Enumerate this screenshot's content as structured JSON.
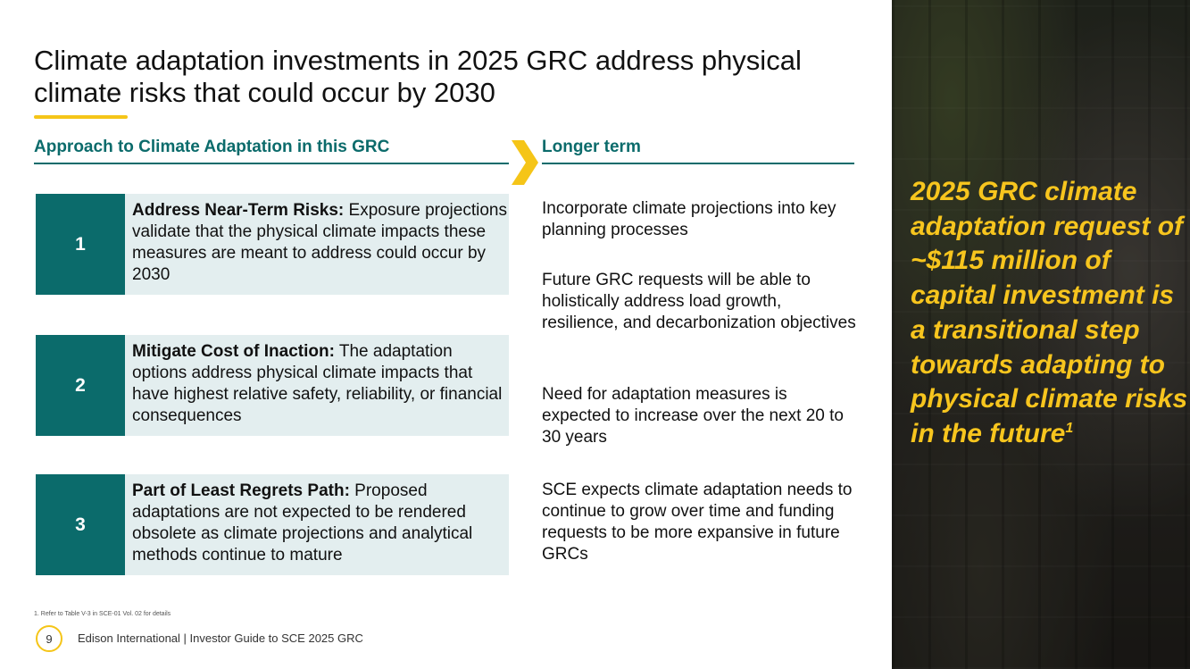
{
  "title": "Climate adaptation investments in 2025 GRC address physical climate risks that could occur by 2030",
  "approach_heading": "Approach to Climate Adaptation in this GRC",
  "longer_term_heading": "Longer term",
  "cards": [
    {
      "number": "1",
      "heading": "Address Near-Term Risks:",
      "body": " Exposure projections validate that the physical climate impacts these measures are meant to address could occur by 2030"
    },
    {
      "number": "2",
      "heading": "Mitigate Cost of Inaction:",
      "body": " The adaptation options address physical climate impacts that have highest relative safety, reliability, or financial consequences"
    },
    {
      "number": "3",
      "heading": "Part of Least Regrets Path:",
      "body": " Proposed adaptations are not expected to be rendered obsolete as climate projections and analytical methods continue to mature"
    }
  ],
  "longer_term_items": [
    "Incorporate climate projections into key planning processes",
    "Future GRC requests will be able to holistically address load growth, resilience, and decarbonization objectives",
    "Need for adaptation measures is expected to increase over the next 20 to 30 years",
    "SCE expects climate adaptation needs to continue to grow over time and funding requests to be more expansive in future GRCs"
  ],
  "side_quote": {
    "text": "2025 GRC climate adaptation request of ~$115 million of capital investment is a transitional step towards adapting to physical climate risks in the future",
    "footnote_marker": "1"
  },
  "footnote": "1.   Refer to Table V-3 in SCE-01 Vol. 02 for details",
  "page_number": "9",
  "footer_text": "Edison International | Investor Guide to SCE 2025 GRC",
  "colors": {
    "teal": "#0b6b6b",
    "card_background": "#e3eeef",
    "accent_yellow": "#f5c518",
    "quote_yellow": "#f7c51e"
  }
}
